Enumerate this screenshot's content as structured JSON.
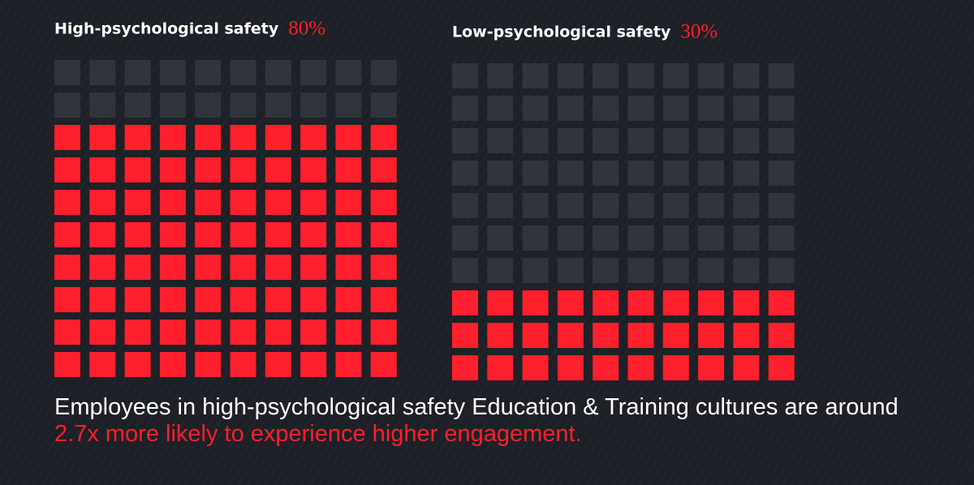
{
  "chart_data": [
    {
      "type": "waffle",
      "title": "High-psychological safety",
      "values": [
        80
      ],
      "value_labels": [
        "80%"
      ],
      "color": "#ff1f2d",
      "empty_color": "#30353d"
    },
    {
      "type": "waffle",
      "title": "Low-psychological safety",
      "values": [
        30
      ],
      "value_labels": [
        "30%"
      ],
      "color": "#ff1f2d",
      "empty_color": "#30353d"
    }
  ],
  "caption": {
    "text": "Employees in high-psychological safety Education & Training cultures are around",
    "highlight": "2.7x more likely to experience higher engagement."
  }
}
